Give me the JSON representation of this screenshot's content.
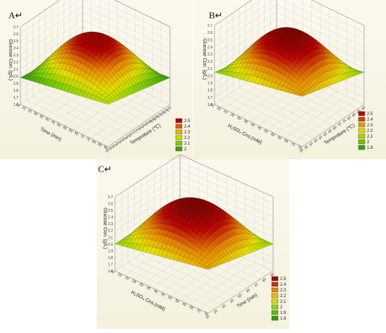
{
  "panels": [
    {
      "label": "A↵",
      "chart_data": {
        "type": "surface3d",
        "zlabel": "Glucose Con. (g/L)",
        "xlabel": "Time (min)",
        "ylabel": "Temprature (℃)",
        "x_ticks": [
          "15",
          "20",
          "25",
          "30",
          "35",
          "40",
          "45",
          "50",
          "55",
          "60",
          "65",
          "70",
          "75",
          "80",
          "85",
          "90"
        ],
        "y_ticks": [
          "30",
          "35",
          "40",
          "45",
          "50",
          "55",
          "60",
          "65",
          "70",
          "75",
          "80",
          "85",
          "90",
          "95",
          "100",
          "105",
          "110",
          "115",
          "120",
          "125"
        ],
        "z_ticks": [
          "1.6",
          "1.7",
          "1.8",
          "1.9",
          "2.0",
          "2.1",
          "2.2",
          "2.3",
          "2.4",
          "2.5",
          "2.6",
          "2.7"
        ],
        "zlim": [
          1.6,
          2.7
        ],
        "peak_z": 2.55,
        "corner_z": [
          1.85,
          1.98,
          1.98,
          2.2
        ],
        "legend": [
          "2.5",
          "2.4",
          "2.3",
          "2.2",
          "2.1",
          "2"
        ]
      }
    },
    {
      "label": "B↵",
      "chart_data": {
        "type": "surface3d",
        "zlabel": "Glucose Con. (g/L)",
        "xlabel": "H₂SO₄ Cns.(mM)",
        "ylabel": "Temprature (℃)",
        "x_ticks": [
          "10",
          "15",
          "20",
          "25",
          "30",
          "35",
          "40",
          "45",
          "50",
          "55",
          "60",
          "65",
          "70",
          "75"
        ],
        "y_ticks": [
          "30",
          "35",
          "40",
          "45",
          "50",
          "55",
          "60",
          "65",
          "70",
          "75",
          "80",
          "85",
          "90",
          "95"
        ],
        "z_ticks": [
          "1.6",
          "1.7",
          "1.8",
          "1.9",
          "2.0",
          "2.1",
          "2.2",
          "2.3",
          "2.4",
          "2.5",
          "2.6",
          "2.7"
        ],
        "zlim": [
          1.6,
          2.7
        ],
        "peak_z": 2.6,
        "corner_z": [
          1.8,
          2.05,
          2.05,
          2.3
        ],
        "legend": [
          "2.5",
          "2.4",
          "2.3",
          "2.2",
          "2.1",
          "2",
          "1.9"
        ]
      }
    },
    {
      "label": "C↵",
      "chart_data": {
        "type": "surface3d",
        "zlabel": "Glucose Con. (g/L)",
        "xlabel": "H₂SO₄ Cns.(mM)",
        "ylabel": "Time (min)",
        "x_ticks": [
          "10",
          "15",
          "20",
          "25",
          "30",
          "35",
          "40",
          "45",
          "50",
          "55",
          "60",
          "65",
          "70",
          "75"
        ],
        "y_ticks": [
          "10",
          "20",
          "30",
          "40",
          "50",
          "60",
          "70",
          "80",
          "90"
        ],
        "z_ticks": [
          "1.6",
          "1.7",
          "1.8",
          "1.9",
          "2.0",
          "2.1",
          "2.2",
          "2.3",
          "2.4",
          "2.5",
          "2.6",
          "2.7"
        ],
        "zlim": [
          1.6,
          2.7
        ],
        "peak_z": 2.6,
        "corner_z": [
          2.0,
          2.0,
          2.0,
          2.25
        ],
        "legend": [
          "2.5",
          "2.4",
          "2.3",
          "2.2",
          "2.1",
          "2",
          "1.9",
          "1.8"
        ]
      }
    }
  ],
  "colors": {
    "surface_low": "#0d7a14",
    "surface_mid_low": "#7fd100",
    "surface_mid": "#e6e000",
    "surface_mid_high": "#e88a00",
    "surface_high": "#b80000",
    "surface_top": "#7a0000",
    "box_line": "#9a9a9a",
    "grid_line": "#cfcfcf"
  }
}
